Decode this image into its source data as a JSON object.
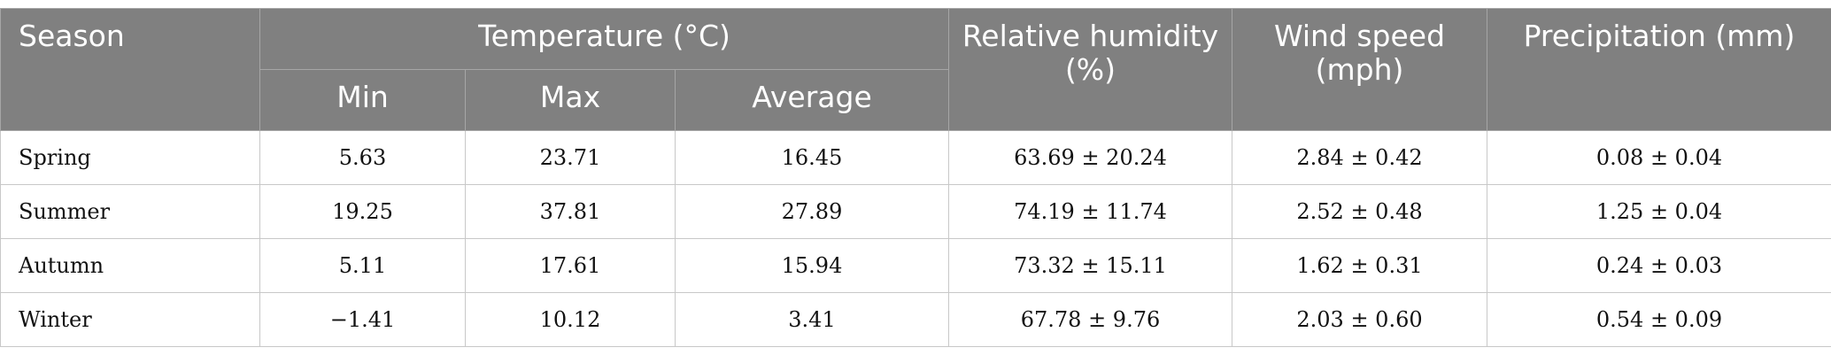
{
  "table": {
    "header": {
      "season": "Season",
      "temperature": "Temperature (°C)",
      "min": "Min",
      "max": "Max",
      "average": "Average",
      "humidity": "Relative humidity (%)",
      "wind": "Wind speed (mph)",
      "precipitation": "Precipitation (mm)"
    },
    "rows": [
      [
        "Spring",
        "5.63",
        "23.71",
        "16.45",
        "63.69 ± 20.24",
        "2.84 ± 0.42",
        "0.08 ± 0.04"
      ],
      [
        "Summer",
        "19.25",
        "37.81",
        "27.89",
        "74.19 ± 11.74",
        "2.52 ± 0.48",
        "1.25 ± 0.04"
      ],
      [
        "Autumn",
        "5.11",
        "17.61",
        "15.94",
        "73.32 ± 15.11",
        "1.62 ± 0.31",
        "0.24 ± 0.03"
      ],
      [
        "Winter",
        "−1.41",
        "10.12",
        "3.41",
        "67.78 ± 9.76",
        "2.03 ± 0.60",
        "0.54 ± 0.09"
      ]
    ]
  }
}
